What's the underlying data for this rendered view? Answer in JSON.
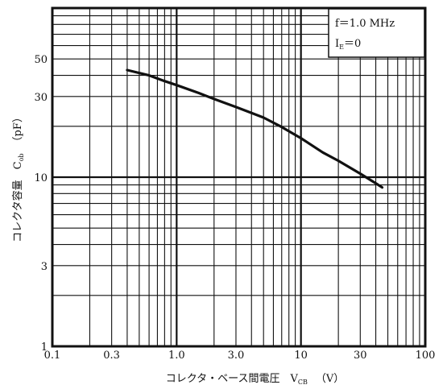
{
  "chart_data": {
    "type": "line",
    "title": "",
    "xlabel": {
      "main": "コレクタ・ベース間電圧　V",
      "sub": "CB",
      "unit": "（V）"
    },
    "ylabel": {
      "main": "コレクタ容量　C",
      "sub": "ob",
      "unit": "（pF）"
    },
    "x_scale": "log",
    "y_scale": "log",
    "xlim": [
      0.1,
      100
    ],
    "ylim": [
      1,
      100
    ],
    "x_ticks": [
      {
        "value": 0.1,
        "label": "0.1"
      },
      {
        "value": 0.3,
        "label": "0.3"
      },
      {
        "value": 1,
        "label": "1.0"
      },
      {
        "value": 3,
        "label": "3.0"
      },
      {
        "value": 10,
        "label": "10"
      },
      {
        "value": 30,
        "label": "30"
      },
      {
        "value": 100,
        "label": "100"
      }
    ],
    "y_ticks": [
      {
        "value": 1,
        "label": "1"
      },
      {
        "value": 3,
        "label": "3"
      },
      {
        "value": 10,
        "label": "10"
      },
      {
        "value": 30,
        "label": "30"
      },
      {
        "value": 50,
        "label": "50"
      }
    ],
    "grid": true,
    "annotation": {
      "line1": "f＝1.0 MHz",
      "line2_main": "I",
      "line2_sub": "E",
      "line2_rest": "＝0"
    },
    "series": [
      {
        "x": [
          0.4,
          0.6,
          0.8,
          1.0,
          1.5,
          2.0,
          3.0,
          4.0,
          5.0,
          7.0,
          10,
          15,
          20,
          30,
          40,
          45
        ],
        "values": [
          43,
          40,
          37,
          35,
          31.5,
          29,
          26,
          24,
          22.5,
          19.8,
          17,
          14,
          12.5,
          10.5,
          9.2,
          8.7
        ]
      }
    ]
  }
}
